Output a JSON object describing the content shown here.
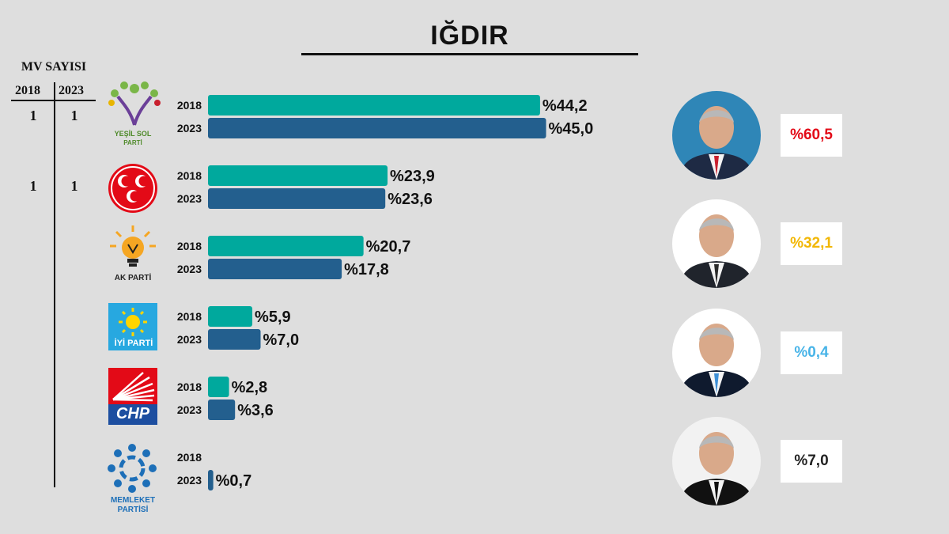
{
  "title": "IĞDIR",
  "mv": {
    "header": "MV SAYISI",
    "years": [
      "2018",
      "2023"
    ],
    "rows": [
      {
        "v2018": "1",
        "v2023": "1"
      },
      {
        "v2018": "1",
        "v2023": "1"
      }
    ]
  },
  "parties": [
    {
      "caption1": "YEŞİL SOL",
      "caption2": "PARTİ",
      "logo_icon": "yesil-sol-logo-icon",
      "color": "#7ab648"
    },
    {
      "caption1": "",
      "caption2": "",
      "logo_icon": "mhp-crescents-logo-icon",
      "color": "#e30a17"
    },
    {
      "caption1": "AK PARTİ",
      "caption2": "",
      "logo_icon": "ak-parti-bulb-logo-icon",
      "color": "#f5a623"
    },
    {
      "caption1": "İYİ PARTİ",
      "caption2": "",
      "logo_icon": "iyi-parti-sun-logo-icon",
      "color": "#27a8e0"
    },
    {
      "caption1": "CHP",
      "caption2": "",
      "logo_icon": "chp-six-arrows-logo-icon",
      "color": "#e30a17"
    },
    {
      "caption1": "MEMLEKET",
      "caption2": "PARTİSİ",
      "logo_icon": "memleket-partisi-logo-icon",
      "color": "#1d6fb8"
    }
  ],
  "chart_data": {
    "type": "bar",
    "orientation": "horizontal",
    "title": "IĞDIR",
    "xlim": [
      0,
      50
    ],
    "grid": false,
    "colors": {
      "2018": "#00a99d",
      "2023": "#235f8e"
    },
    "groups": [
      {
        "party": "YEŞİL SOL PARTİ",
        "bars": [
          {
            "year": "2018",
            "value": 44.2,
            "label": "%44,2"
          },
          {
            "year": "2023",
            "value": 45.0,
            "label": "%45,0"
          }
        ]
      },
      {
        "party": "MHP",
        "bars": [
          {
            "year": "2018",
            "value": 23.9,
            "label": "%23,9"
          },
          {
            "year": "2023",
            "value": 23.6,
            "label": "%23,6"
          }
        ]
      },
      {
        "party": "AK PARTİ",
        "bars": [
          {
            "year": "2018",
            "value": 20.7,
            "label": "%20,7"
          },
          {
            "year": "2023",
            "value": 17.8,
            "label": "%17,8"
          }
        ]
      },
      {
        "party": "İYİ PARTİ",
        "bars": [
          {
            "year": "2018",
            "value": 5.9,
            "label": "%5,9"
          },
          {
            "year": "2023",
            "value": 7.0,
            "label": "%7,0"
          }
        ]
      },
      {
        "party": "CHP",
        "bars": [
          {
            "year": "2018",
            "value": 2.8,
            "label": "%2,8"
          },
          {
            "year": "2023",
            "value": 3.6,
            "label": "%3,6"
          }
        ]
      },
      {
        "party": "MEMLEKET PARTİSİ",
        "bars": [
          {
            "year": "2018",
            "value": null,
            "label": ""
          },
          {
            "year": "2023",
            "value": 0.7,
            "label": "%0,7"
          }
        ]
      }
    ]
  },
  "candidates": [
    {
      "result": "%60,5",
      "color": "#e30a17",
      "avatar_icon": "candidate-1-portrait-icon",
      "bg": "#2f86b7",
      "suit": "#1e2a44",
      "tie": "#c8202e"
    },
    {
      "result": "%32,1",
      "color": "#f2b705",
      "avatar_icon": "candidate-2-portrait-icon",
      "bg": "#ffffff",
      "suit": "#20242c",
      "tie": "#2b2b2b"
    },
    {
      "result": "%0,4",
      "color": "#48b4e8",
      "avatar_icon": "candidate-3-portrait-icon",
      "bg": "#ffffff",
      "suit": "#0f1a2e",
      "tie": "#3d8fd6"
    },
    {
      "result": "%7,0",
      "color": "#222222",
      "avatar_icon": "candidate-4-portrait-icon",
      "bg": "#f2f2f2",
      "suit": "#111111",
      "tie": "#111111"
    }
  ]
}
